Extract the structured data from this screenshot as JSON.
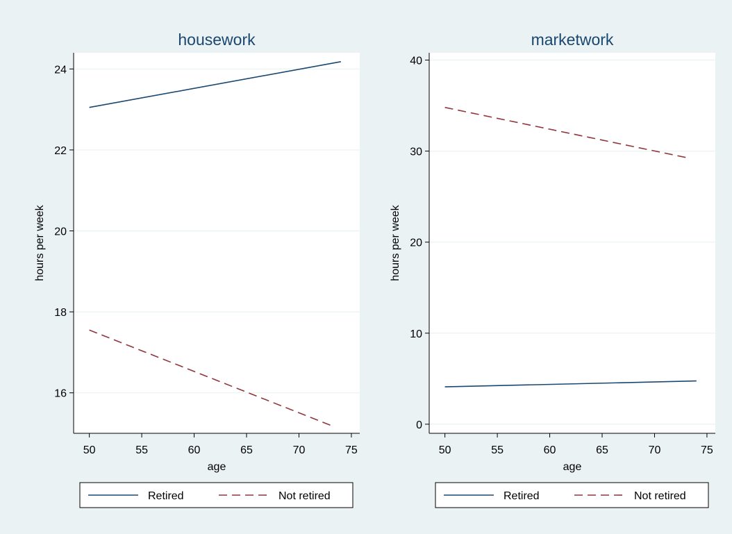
{
  "chart_data": [
    {
      "type": "line",
      "title": "housework",
      "xlabel": "age",
      "ylabel": "hours per week",
      "xlim": [
        48.5,
        75.8
      ],
      "ylim": [
        15.0,
        24.4
      ],
      "xticks": [
        50,
        55,
        60,
        65,
        70,
        75
      ],
      "yticks": [
        16,
        18,
        20,
        22,
        24
      ],
      "grid": true,
      "legend_position": "bottom",
      "series": [
        {
          "name": "Retired",
          "color": "#1a476f",
          "style": "solid",
          "x": [
            50,
            74
          ],
          "y": [
            23.05,
            24.18
          ]
        },
        {
          "name": "Not retired",
          "color": "#90353b",
          "style": "dashed",
          "x": [
            50,
            73
          ],
          "y": [
            17.55,
            15.2
          ]
        }
      ]
    },
    {
      "type": "line",
      "title": "marketwork",
      "xlabel": "age",
      "ylabel": "hours per week",
      "xlim": [
        48.5,
        75.8
      ],
      "ylim": [
        -1.0,
        40.8
      ],
      "xticks": [
        50,
        55,
        60,
        65,
        70,
        75
      ],
      "yticks": [
        0,
        10,
        20,
        30,
        40
      ],
      "grid": true,
      "legend_position": "bottom",
      "series": [
        {
          "name": "Retired",
          "color": "#1a476f",
          "style": "solid",
          "x": [
            50,
            74
          ],
          "y": [
            4.1,
            4.75
          ]
        },
        {
          "name": "Not retired",
          "color": "#90353b",
          "style": "dashed",
          "x": [
            50,
            73
          ],
          "y": [
            34.8,
            29.3
          ]
        }
      ]
    }
  ]
}
